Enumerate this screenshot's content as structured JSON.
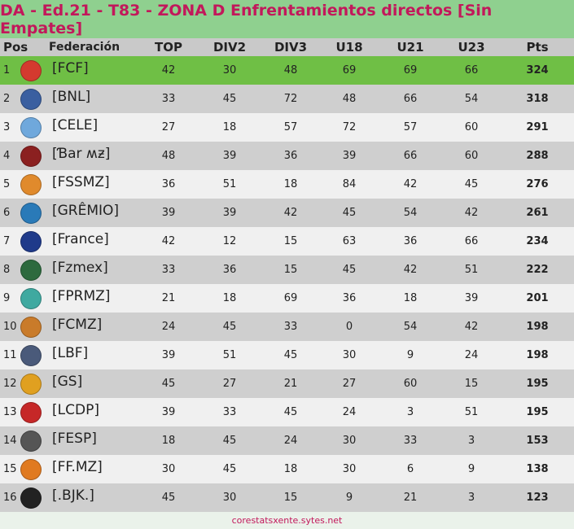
{
  "title": "DA - Ed.21 - T83 - ZONA D Enfrentamientos directos [Sin Empates]",
  "headers": {
    "pos": "Pos",
    "federation": "Federación",
    "top": "TOP",
    "div2": "DIV2",
    "div3": "DIV3",
    "u18": "U18",
    "u21": "U21",
    "u23": "U23",
    "pts": "Pts"
  },
  "rows": [
    {
      "pos": "1",
      "name": "[FCF]",
      "top": "42",
      "div2": "30",
      "div3": "48",
      "u18": "69",
      "u21": "69",
      "u23": "66",
      "pts": "324",
      "logo_color": "#d43a2f",
      "logo_icon": "colombia-shield-icon"
    },
    {
      "pos": "2",
      "name": "[BNL]",
      "top": "33",
      "div2": "45",
      "div3": "72",
      "u18": "48",
      "u21": "66",
      "u23": "54",
      "pts": "318",
      "logo_color": "#3a5fa0",
      "logo_icon": "crest-icon"
    },
    {
      "pos": "3",
      "name": "[CELE]",
      "top": "27",
      "div2": "18",
      "div3": "57",
      "u18": "72",
      "u21": "57",
      "u23": "60",
      "pts": "291",
      "logo_color": "#6fa8dc",
      "logo_icon": "round-badge-icon"
    },
    {
      "pos": "4",
      "name": "[Ɓar ʍƶ]",
      "top": "48",
      "div2": "39",
      "div3": "36",
      "u18": "39",
      "u21": "66",
      "u23": "60",
      "pts": "288",
      "logo_color": "#8b2020",
      "logo_icon": "shield-icon"
    },
    {
      "pos": "5",
      "name": "[FSSMZ]",
      "top": "36",
      "div2": "51",
      "div3": "18",
      "u18": "84",
      "u21": "42",
      "u23": "45",
      "pts": "276",
      "logo_color": "#e08a2c",
      "logo_icon": "ball-icon"
    },
    {
      "pos": "6",
      "name": "[GRÊMIO]",
      "top": "39",
      "div2": "39",
      "div3": "42",
      "u18": "45",
      "u21": "54",
      "u23": "42",
      "pts": "261",
      "logo_color": "#2a7ab8",
      "logo_icon": "round-badge-icon"
    },
    {
      "pos": "7",
      "name": "[France]",
      "top": "42",
      "div2": "12",
      "div3": "15",
      "u18": "63",
      "u21": "36",
      "u23": "66",
      "pts": "234",
      "logo_color": "#1f3a8a",
      "logo_icon": "shield-icon"
    },
    {
      "pos": "8",
      "name": "[Fzmex]",
      "top": "33",
      "div2": "36",
      "div3": "15",
      "u18": "45",
      "u21": "42",
      "u23": "51",
      "pts": "222",
      "logo_color": "#2d6a3e",
      "logo_icon": "square-badge-icon"
    },
    {
      "pos": "9",
      "name": "[FPRMZ]",
      "top": "21",
      "div2": "18",
      "div3": "69",
      "u18": "36",
      "u21": "18",
      "u23": "39",
      "pts": "201",
      "logo_color": "#3fa9a0",
      "logo_icon": "globe-icon"
    },
    {
      "pos": "10",
      "name": "[FCMZ]",
      "top": "24",
      "div2": "45",
      "div3": "33",
      "u18": "0",
      "u21": "54",
      "u23": "42",
      "pts": "198",
      "logo_color": "#c97b2a",
      "logo_icon": "shield-icon"
    },
    {
      "pos": "11",
      "name": "[LBF]",
      "top": "39",
      "div2": "51",
      "div3": "45",
      "u18": "30",
      "u21": "9",
      "u23": "24",
      "pts": "198",
      "logo_color": "#4a5a7a",
      "logo_icon": "shield-icon"
    },
    {
      "pos": "12",
      "name": "[GS]",
      "top": "45",
      "div2": "27",
      "div3": "21",
      "u18": "27",
      "u21": "60",
      "u23": "15",
      "pts": "195",
      "logo_color": "#e0a020",
      "logo_icon": "crest-icon"
    },
    {
      "pos": "13",
      "name": "[LCDP]",
      "top": "39",
      "div2": "33",
      "div3": "45",
      "u18": "24",
      "u21": "3",
      "u23": "51",
      "pts": "195",
      "logo_color": "#c62828",
      "logo_icon": "mask-icon"
    },
    {
      "pos": "14",
      "name": "[FESP]",
      "top": "18",
      "div2": "45",
      "div3": "24",
      "u18": "30",
      "u21": "33",
      "u23": "3",
      "pts": "153",
      "logo_color": "#555555",
      "logo_icon": "round-badge-icon"
    },
    {
      "pos": "15",
      "name": "[FF.MZ]",
      "top": "30",
      "div2": "45",
      "div3": "18",
      "u18": "30",
      "u21": "6",
      "u23": "9",
      "pts": "138",
      "logo_color": "#e07a20",
      "logo_icon": "phoenix-icon"
    },
    {
      "pos": "16",
      "name": "[.BJK.]",
      "top": "45",
      "div2": "30",
      "div3": "15",
      "u18": "9",
      "u21": "21",
      "u23": "3",
      "pts": "123",
      "logo_color": "#222222",
      "logo_icon": "eagle-icon"
    }
  ],
  "footer": "corestatsxente.sytes.net"
}
